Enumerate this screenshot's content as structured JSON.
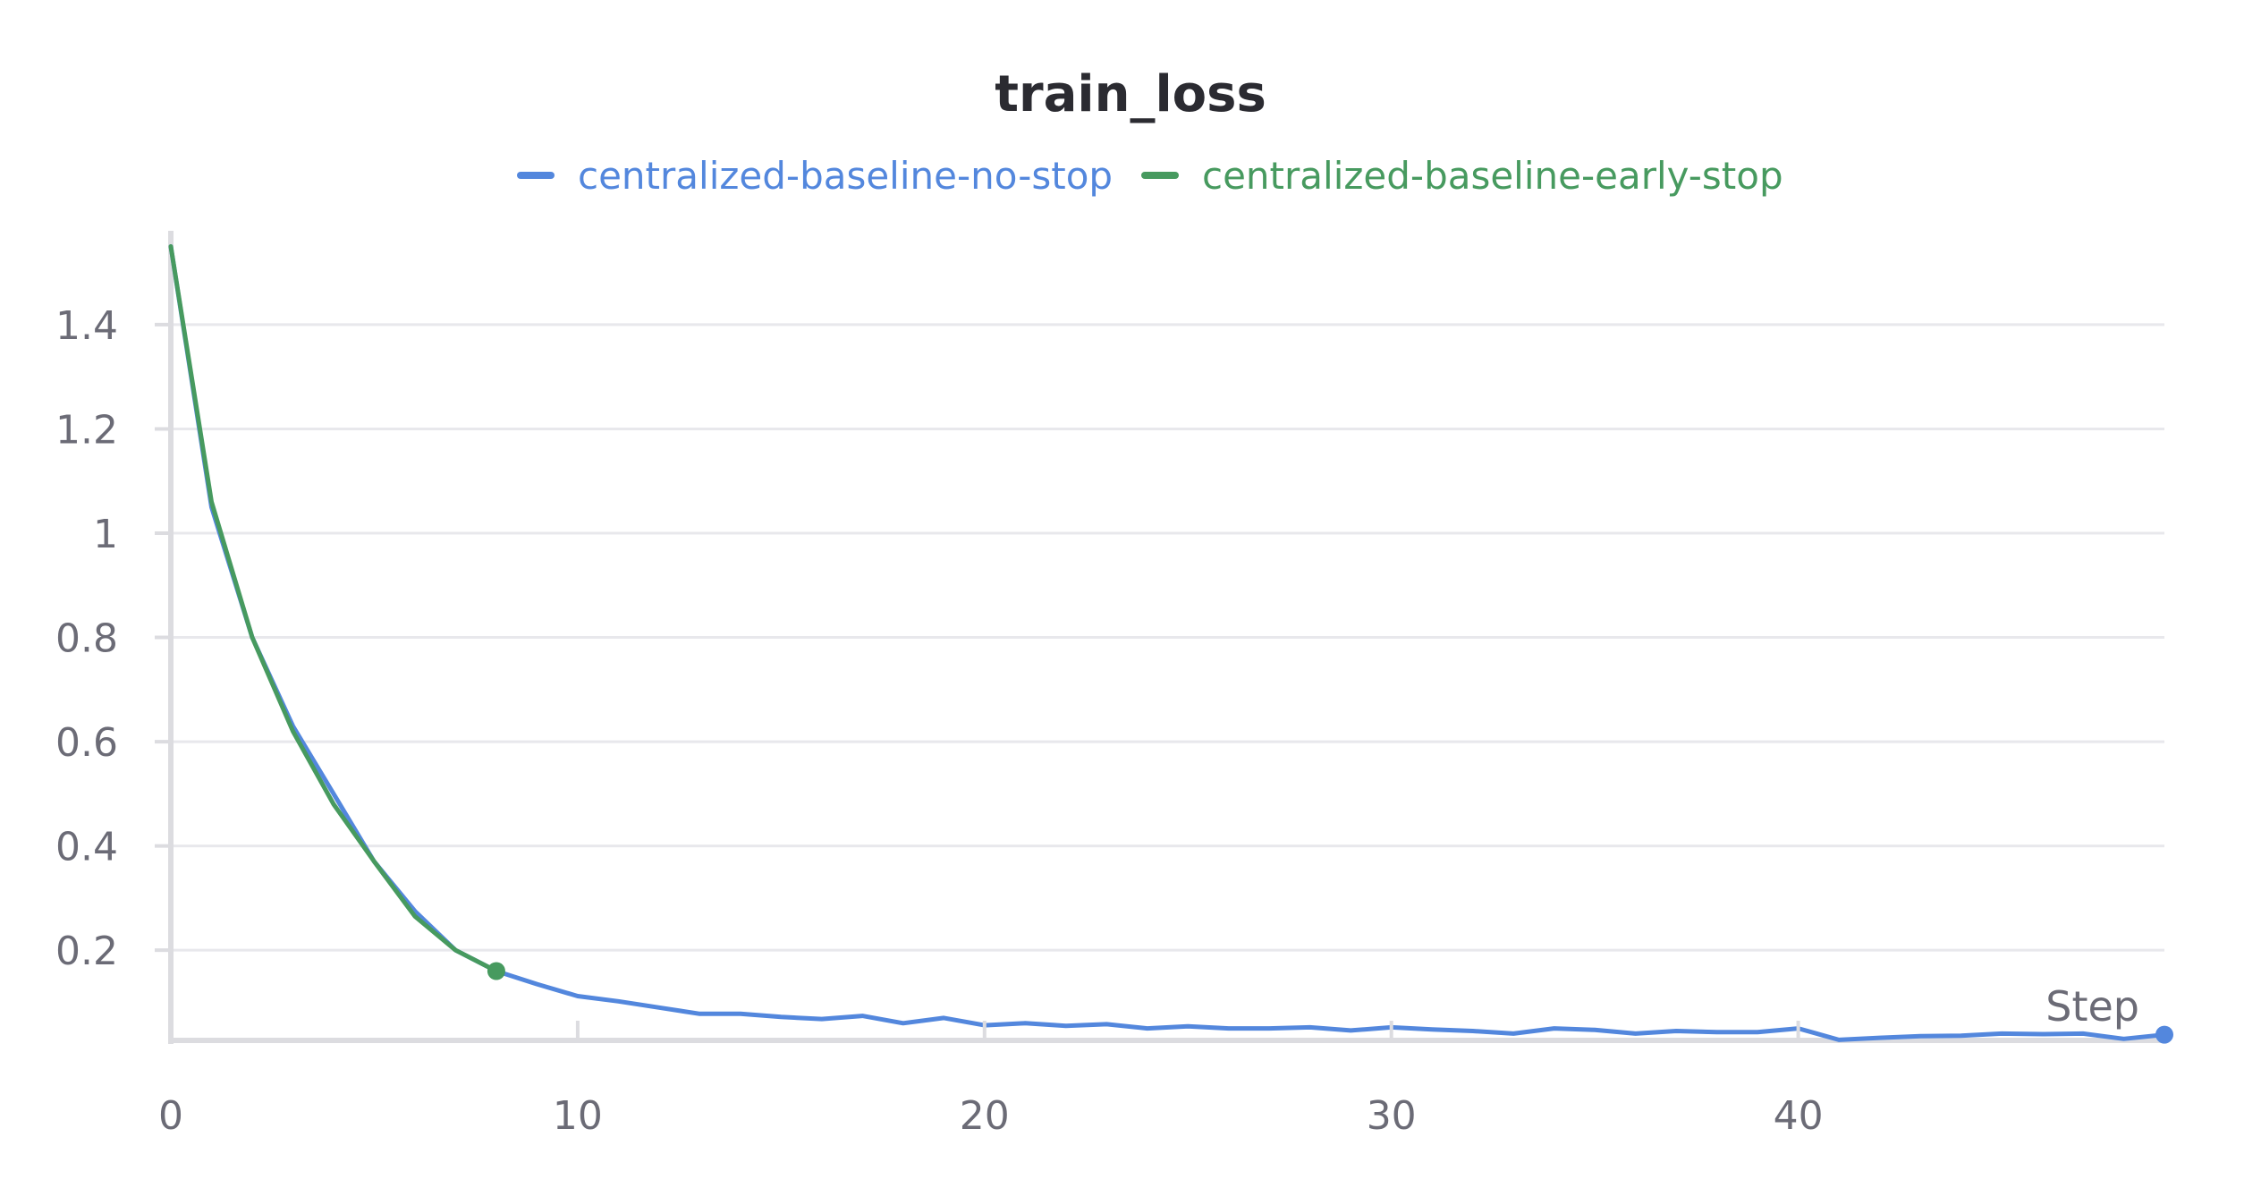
{
  "chart_data": {
    "type": "line",
    "title": "train_loss",
    "xlabel": "Step",
    "ylabel": "",
    "xlim": [
      0,
      49
    ],
    "ylim": [
      0.027,
      1.58
    ],
    "x_ticks": [
      0,
      10,
      20,
      30,
      40
    ],
    "x_tick_labels": [
      "0",
      "10",
      "20",
      "30",
      "40"
    ],
    "y_ticks": [
      0.2,
      0.4,
      0.6,
      0.8,
      1.0,
      1.2,
      1.4
    ],
    "y_tick_labels": [
      "0.2",
      "0.4",
      "0.6",
      "0.8",
      "1",
      "1.2",
      "1.4"
    ],
    "grid": true,
    "legend_position": "top-center",
    "series": [
      {
        "name": "centralized-baseline-no-stop",
        "color": "#5387dd",
        "x": [
          0,
          1,
          2,
          3,
          4,
          5,
          6,
          7,
          8,
          9,
          10,
          11,
          12,
          13,
          14,
          15,
          16,
          17,
          18,
          19,
          20,
          21,
          22,
          23,
          24,
          25,
          26,
          27,
          28,
          29,
          30,
          31,
          32,
          33,
          34,
          35,
          36,
          37,
          38,
          39,
          40,
          41,
          42,
          43,
          44,
          45,
          46,
          47,
          48,
          49
        ],
        "values": [
          1.55,
          1.05,
          0.8,
          0.63,
          0.5,
          0.37,
          0.275,
          0.2,
          0.16,
          0.135,
          0.112,
          0.102,
          0.09,
          0.078,
          0.078,
          0.072,
          0.068,
          0.074,
          0.06,
          0.07,
          0.056,
          0.06,
          0.055,
          0.058,
          0.05,
          0.054,
          0.05,
          0.05,
          0.052,
          0.046,
          0.052,
          0.048,
          0.045,
          0.04,
          0.05,
          0.047,
          0.04,
          0.045,
          0.043,
          0.043,
          0.05,
          0.028,
          0.032,
          0.035,
          0.036,
          0.04,
          0.039,
          0.04,
          0.03,
          0.038
        ],
        "end_marker": true
      },
      {
        "name": "centralized-baseline-early-stop",
        "color": "#479a5f",
        "x": [
          0,
          1,
          2,
          3,
          4,
          5,
          6,
          7,
          8
        ],
        "values": [
          1.55,
          1.06,
          0.8,
          0.62,
          0.48,
          0.37,
          0.265,
          0.2,
          0.16
        ],
        "end_marker": true
      }
    ]
  }
}
